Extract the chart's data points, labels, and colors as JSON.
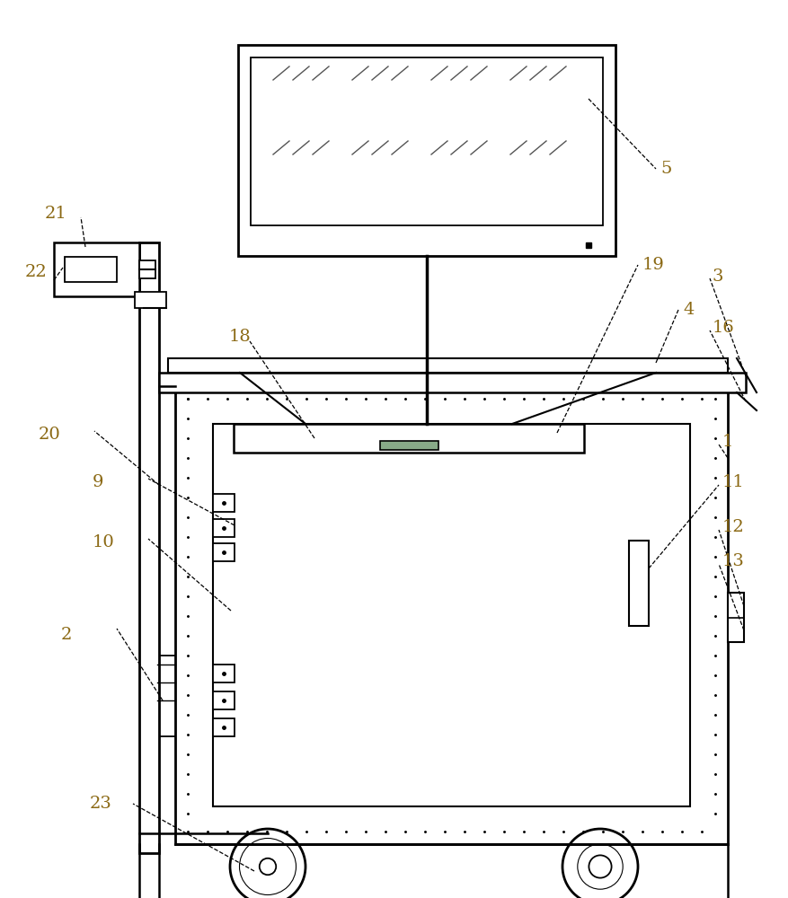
{
  "bg_color": "#ffffff",
  "line_color": "#000000",
  "label_color": "#8B6914",
  "fig_width": 8.77,
  "fig_height": 10.0
}
